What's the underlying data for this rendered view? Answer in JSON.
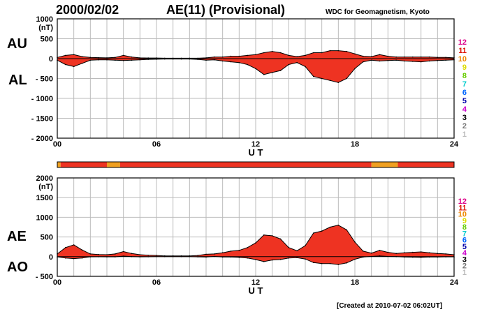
{
  "header": {
    "date": "2000/02/02",
    "title": "AE(11) (Provisional)",
    "source": "WDC for Geomagnetism, Kyoto"
  },
  "footer": {
    "created": "[Created at 2010-07-02 06:02UT]"
  },
  "colors": {
    "fill_active": "#ee3322",
    "fill_partial": "#f0a020",
    "outline": "#000000",
    "grid": "#bbbbbb"
  },
  "station_count_legend": [
    {
      "label": "12",
      "color": "#dd0088"
    },
    {
      "label": "11",
      "color": "#dd1100"
    },
    {
      "label": "10",
      "color": "#ee8800"
    },
    {
      "label": "9",
      "color": "#dddd00"
    },
    {
      "label": "8",
      "color": "#66cc00"
    },
    {
      "label": "7",
      "color": "#00cccc"
    },
    {
      "label": "6",
      "color": "#0066ff"
    },
    {
      "label": "5",
      "color": "#0000aa"
    },
    {
      "label": "4",
      "color": "#cc00cc"
    },
    {
      "label": "3",
      "color": "#000000"
    },
    {
      "label": "2",
      "color": "#777777"
    },
    {
      "label": "1",
      "color": "#bbbbbb"
    }
  ],
  "station_bar": {
    "segments": [
      {
        "from": 0,
        "to": 0.2,
        "color": "#f0a020"
      },
      {
        "from": 0.2,
        "to": 3.0,
        "color": "#ee3322"
      },
      {
        "from": 3.0,
        "to": 3.8,
        "color": "#f0a020"
      },
      {
        "from": 3.8,
        "to": 19.0,
        "color": "#ee3322"
      },
      {
        "from": 19.0,
        "to": 20.6,
        "color": "#f0a020"
      },
      {
        "from": 20.6,
        "to": 24,
        "color": "#ee3322"
      }
    ]
  },
  "chart_data": [
    {
      "type": "area",
      "xlabel": "U T",
      "ylabel": "(nT)",
      "xlim": [
        0,
        24
      ],
      "ylim": [
        -2000,
        1000
      ],
      "xticks": [
        0,
        6,
        12,
        18,
        24
      ],
      "xtick_labels": [
        "00",
        "06",
        "12",
        "18",
        "24"
      ],
      "yticks": [
        1000,
        500,
        0,
        -500,
        -1000,
        -1500,
        -2000
      ],
      "ytick_labels": [
        "1000",
        "500",
        "0",
        "- 500",
        "- 1000",
        "- 1500",
        "- 2000"
      ],
      "grid": true,
      "x": [
        0,
        0.5,
        1,
        1.5,
        2,
        2.5,
        3,
        3.5,
        4,
        4.5,
        5,
        5.5,
        6,
        6.5,
        7,
        7.5,
        8,
        8.5,
        9,
        9.5,
        10,
        10.5,
        11,
        11.5,
        12,
        12.5,
        13,
        13.5,
        14,
        14.5,
        15,
        15.5,
        16,
        16.5,
        17,
        17.5,
        18,
        18.5,
        19,
        19.5,
        20,
        20.5,
        21,
        21.5,
        22,
        22.5,
        23,
        23.5,
        24
      ],
      "series": [
        {
          "name": "AU",
          "values": [
            30,
            80,
            100,
            50,
            30,
            25,
            20,
            30,
            80,
            40,
            20,
            15,
            15,
            10,
            10,
            10,
            10,
            10,
            20,
            40,
            40,
            60,
            60,
            80,
            100,
            150,
            180,
            150,
            80,
            50,
            80,
            150,
            150,
            200,
            200,
            180,
            120,
            60,
            50,
            100,
            60,
            40,
            40,
            40,
            40,
            40,
            30,
            30,
            20
          ]
        },
        {
          "name": "AL",
          "values": [
            -40,
            -150,
            -200,
            -120,
            -40,
            -30,
            -30,
            -40,
            -50,
            -40,
            -30,
            -20,
            -15,
            -10,
            -10,
            -10,
            -10,
            -20,
            -40,
            -30,
            -60,
            -80,
            -100,
            -150,
            -250,
            -400,
            -350,
            -300,
            -150,
            -100,
            -200,
            -450,
            -500,
            -550,
            -600,
            -500,
            -250,
            -80,
            -40,
            -60,
            -50,
            -40,
            -60,
            -70,
            -80,
            -60,
            -50,
            -40,
            -30
          ]
        }
      ]
    },
    {
      "type": "area",
      "xlabel": "U T",
      "ylabel": "(nT)",
      "xlim": [
        0,
        24
      ],
      "ylim": [
        -500,
        2000
      ],
      "xticks": [
        0,
        6,
        12,
        18,
        24
      ],
      "xtick_labels": [
        "00",
        "06",
        "12",
        "18",
        "24"
      ],
      "yticks": [
        2000,
        1500,
        1000,
        500,
        0,
        -500
      ],
      "ytick_labels": [
        "2000",
        "1500",
        "1000",
        "500",
        "0",
        "- 500"
      ],
      "grid": true,
      "x": [
        0,
        0.5,
        1,
        1.5,
        2,
        2.5,
        3,
        3.5,
        4,
        4.5,
        5,
        5.5,
        6,
        6.5,
        7,
        7.5,
        8,
        8.5,
        9,
        9.5,
        10,
        10.5,
        11,
        11.5,
        12,
        12.5,
        13,
        13.5,
        14,
        14.5,
        15,
        15.5,
        16,
        16.5,
        17,
        17.5,
        18,
        18.5,
        19,
        19.5,
        20,
        20.5,
        21,
        21.5,
        22,
        22.5,
        23,
        23.5,
        24
      ],
      "series": [
        {
          "name": "AE",
          "values": [
            70,
            230,
            300,
            170,
            70,
            55,
            50,
            70,
            130,
            80,
            50,
            35,
            30,
            20,
            20,
            20,
            20,
            30,
            60,
            70,
            100,
            140,
            160,
            230,
            350,
            550,
            530,
            450,
            230,
            150,
            280,
            600,
            650,
            750,
            800,
            680,
            370,
            140,
            90,
            160,
            110,
            80,
            100,
            110,
            120,
            100,
            80,
            70,
            50
          ]
        },
        {
          "name": "AO",
          "values": [
            -5,
            -35,
            -50,
            -35,
            -5,
            -3,
            -5,
            -5,
            15,
            0,
            -5,
            -3,
            0,
            0,
            0,
            0,
            0,
            -5,
            -10,
            5,
            -10,
            -10,
            -20,
            -35,
            -75,
            -125,
            -85,
            -75,
            -35,
            -25,
            -60,
            -150,
            -175,
            -175,
            -200,
            -160,
            -65,
            -10,
            5,
            20,
            5,
            0,
            -10,
            -15,
            -20,
            -10,
            -10,
            -5,
            -5
          ]
        }
      ]
    }
  ]
}
